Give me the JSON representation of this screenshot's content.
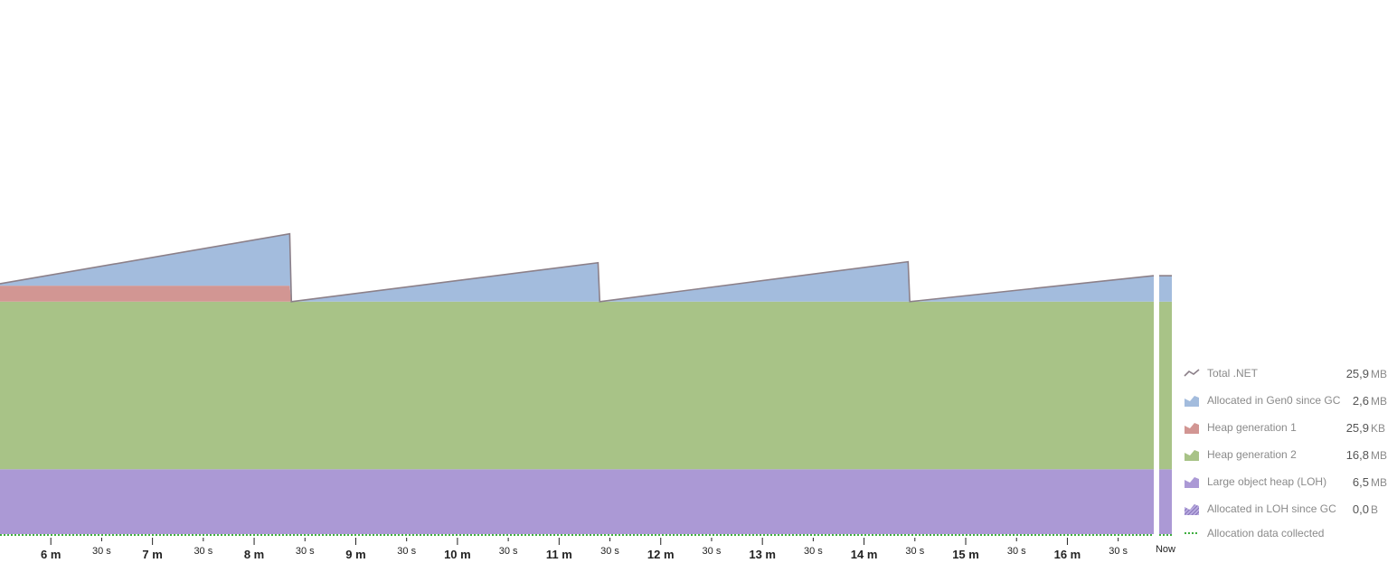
{
  "chart_data": {
    "type": "area",
    "stacked": true,
    "title": "",
    "x_unit": "seconds",
    "xlim": [
      330,
      1011
    ],
    "ylim": [
      0,
      51
    ],
    "x_tick_labels": [
      {
        "t": 360,
        "label": "6 m",
        "major": true
      },
      {
        "t": 390,
        "label": "30 s",
        "major": false
      },
      {
        "t": 420,
        "label": "7 m",
        "major": true
      },
      {
        "t": 450,
        "label": "30 s",
        "major": false
      },
      {
        "t": 480,
        "label": "8 m",
        "major": true
      },
      {
        "t": 510,
        "label": "30 s",
        "major": false
      },
      {
        "t": 540,
        "label": "9 m",
        "major": true
      },
      {
        "t": 570,
        "label": "30 s",
        "major": false
      },
      {
        "t": 600,
        "label": "10 m",
        "major": true
      },
      {
        "t": 630,
        "label": "30 s",
        "major": false
      },
      {
        "t": 660,
        "label": "11 m",
        "major": true
      },
      {
        "t": 690,
        "label": "30 s",
        "major": false
      },
      {
        "t": 720,
        "label": "12 m",
        "major": true
      },
      {
        "t": 750,
        "label": "30 s",
        "major": false
      },
      {
        "t": 780,
        "label": "13 m",
        "major": true
      },
      {
        "t": 810,
        "label": "30 s",
        "major": false
      },
      {
        "t": 840,
        "label": "14 m",
        "major": true
      },
      {
        "t": 870,
        "label": "30 s",
        "major": false
      },
      {
        "t": 900,
        "label": "15 m",
        "major": true
      },
      {
        "t": 930,
        "label": "30 s",
        "major": false
      },
      {
        "t": 960,
        "label": "16 m",
        "major": true
      },
      {
        "t": 990,
        "label": "30 s",
        "major": false
      }
    ],
    "now_label": "Now",
    "series": [
      {
        "name": "Large object heap (LOH)",
        "color": "#ab99d5",
        "points": [
          [
            330,
            6.5
          ],
          [
            1011,
            6.5
          ]
        ]
      },
      {
        "name": "Heap generation 2",
        "color": "#a8c387",
        "points": [
          [
            330,
            16.8
          ],
          [
            1011,
            16.8
          ]
        ]
      },
      {
        "name": "Heap generation 1",
        "color": "#d29693",
        "points": [
          [
            330,
            1.6
          ],
          [
            501,
            1.6
          ],
          [
            502,
            0
          ],
          [
            1011,
            0
          ]
        ]
      },
      {
        "name": "Allocated in Gen0 since GC",
        "color": "#a3bcdd",
        "points": [
          [
            330,
            0.2
          ],
          [
            501,
            5.2
          ],
          [
            502,
            0
          ],
          [
            683,
            3.9
          ],
          [
            684,
            0
          ],
          [
            866,
            4.0
          ],
          [
            867,
            0
          ],
          [
            1011,
            2.6
          ]
        ]
      }
    ],
    "total_series": {
      "name": "Total .NET",
      "color": "#8c8089"
    },
    "legend_position": "bottom-right",
    "legend": [
      {
        "name": "Total .NET",
        "value": "25,9",
        "unit": "MB",
        "icon": "line-icon",
        "color": "#8c8089"
      },
      {
        "name": "Allocated in Gen0 since GC",
        "value": "2,6",
        "unit": "MB",
        "icon": "area-icon",
        "color": "#a3bcdd"
      },
      {
        "name": "Heap generation 1",
        "value": "25,9",
        "unit": "KB",
        "icon": "area-icon",
        "color": "#d29693"
      },
      {
        "name": "Heap generation 2",
        "value": "16,8",
        "unit": "MB",
        "icon": "area-icon",
        "color": "#a8c387"
      },
      {
        "name": "Large object heap (LOH)",
        "value": "6,5",
        "unit": "MB",
        "icon": "area-icon",
        "color": "#ab99d5"
      },
      {
        "name": "Allocated in LOH since GC",
        "value": "0,0",
        "unit": "B",
        "icon": "hatched-area-icon",
        "color": "#7d6bb0"
      },
      {
        "name": "Allocation data collected",
        "value": "",
        "unit": "",
        "icon": "dashed-line-icon",
        "color": "#3fae3f"
      }
    ]
  }
}
